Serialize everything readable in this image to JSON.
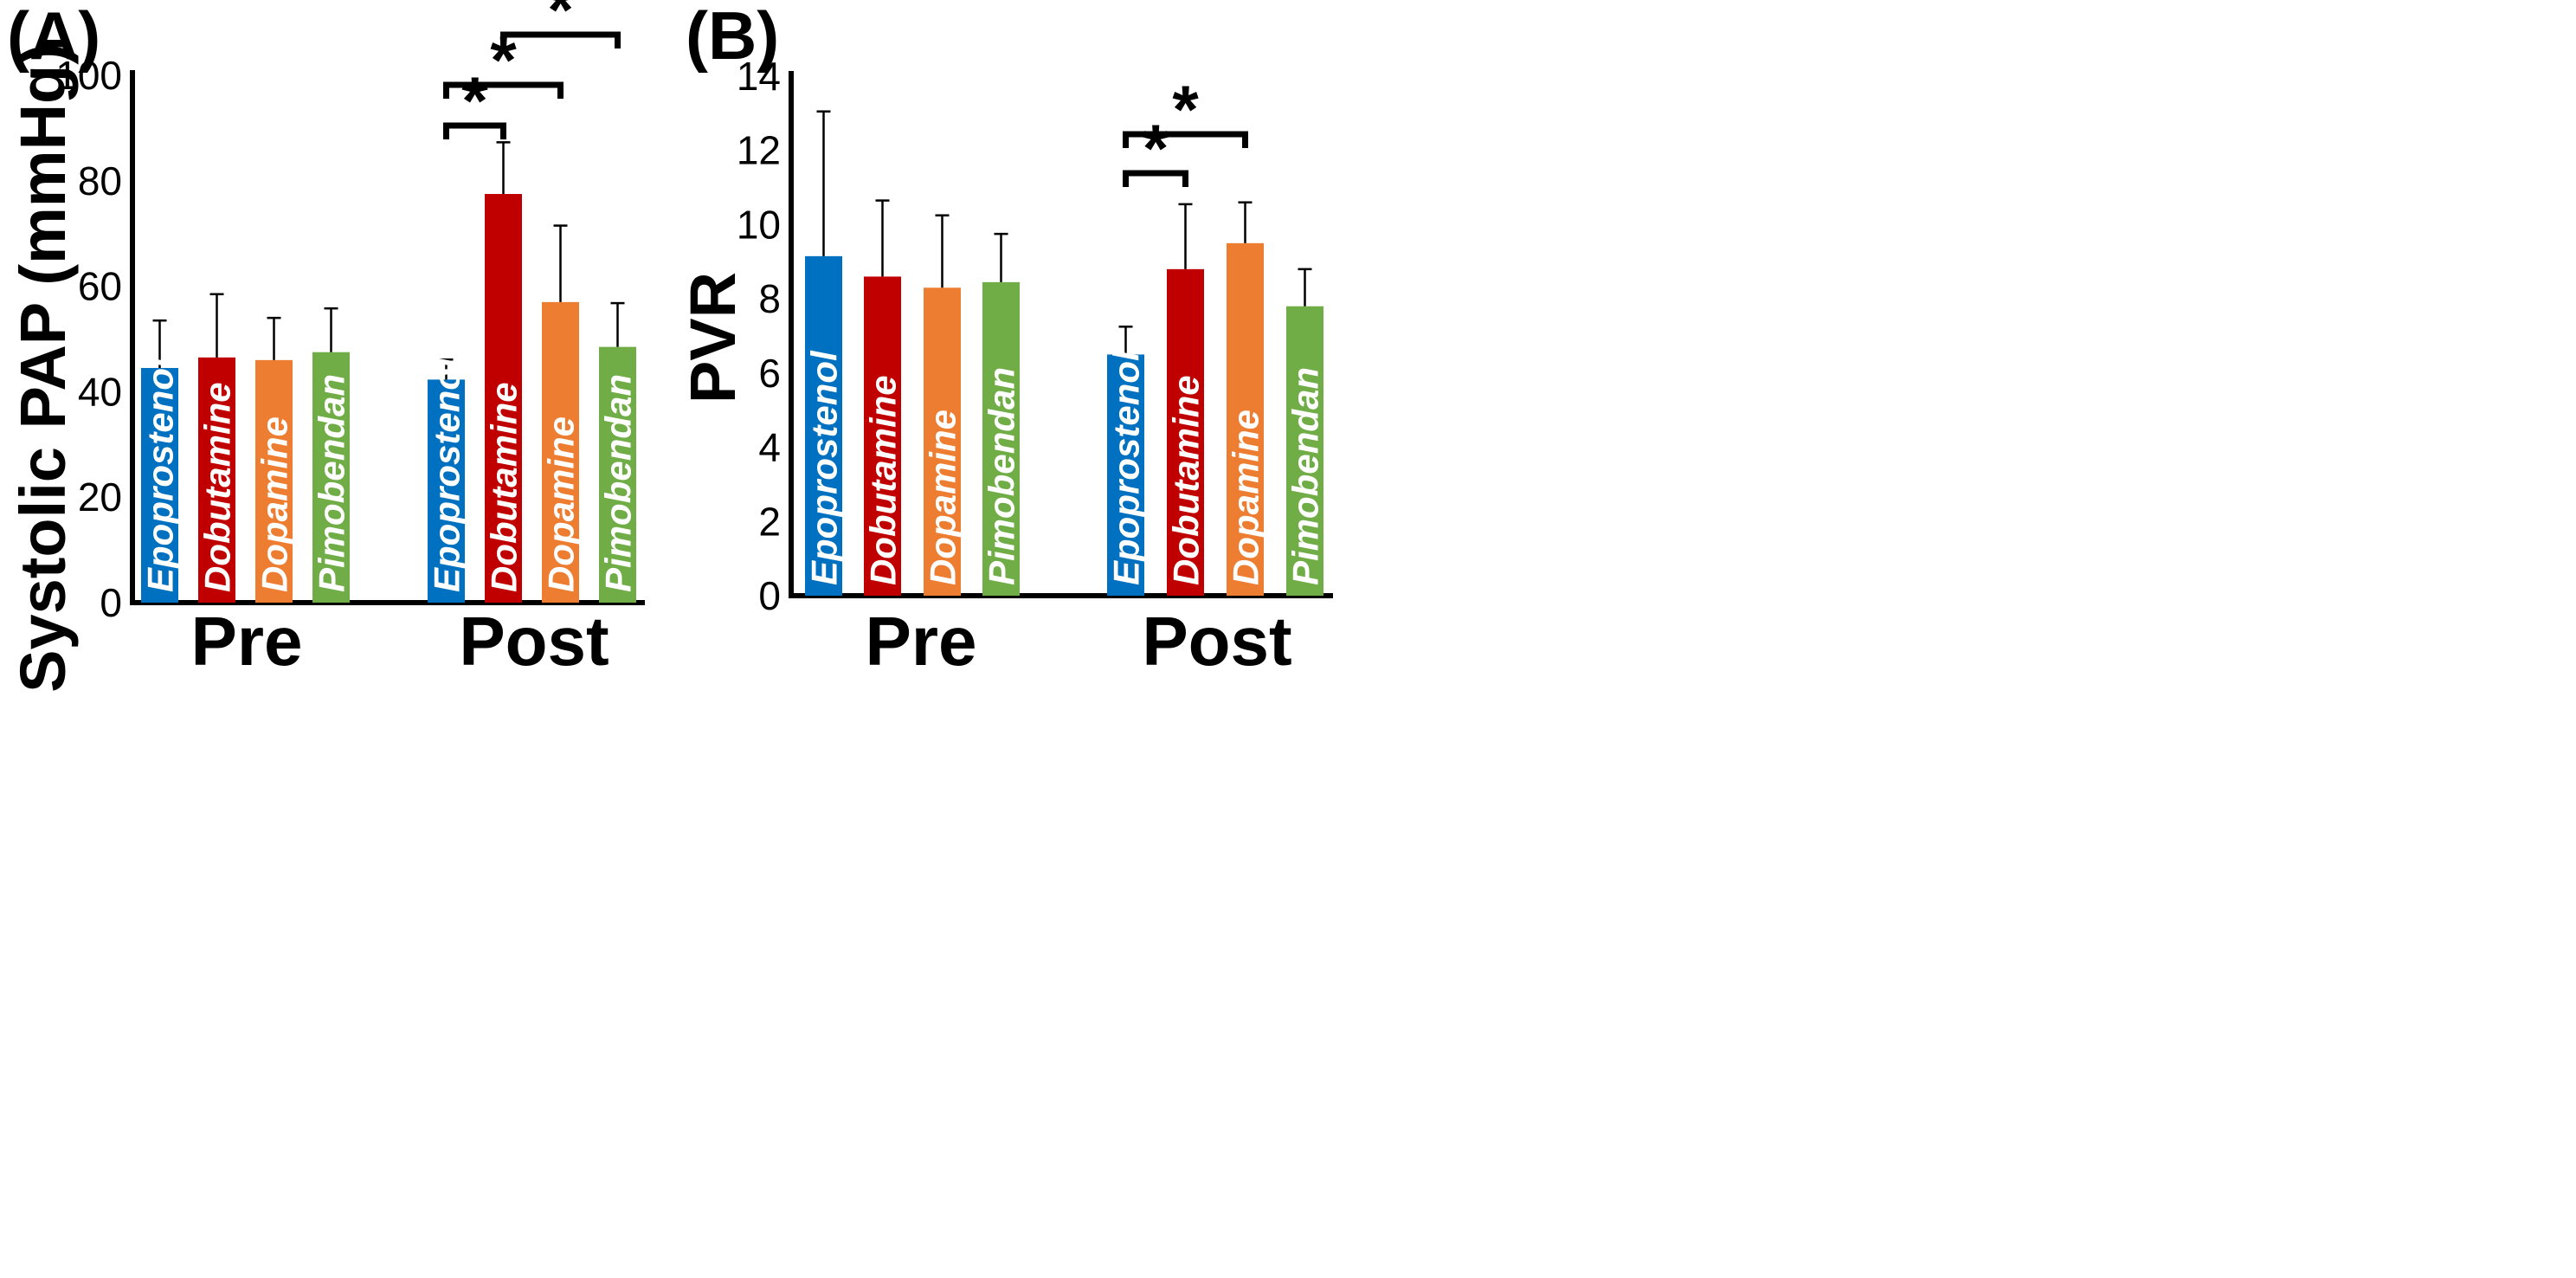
{
  "chart_data": [
    {
      "type": "bar",
      "panel_label": "(A)",
      "ylabel": "Systolic PAP (mmHg)",
      "xlabel": "",
      "ylim": [
        0,
        100
      ],
      "yticks": [
        0,
        20,
        40,
        60,
        80,
        100
      ],
      "groups": [
        "Pre",
        "Post"
      ],
      "categories": [
        "Epoprostenol",
        "Dobutamine",
        "Dopamine",
        "Pimobendan"
      ],
      "colors": [
        "#0070c0",
        "#c00000",
        "#ed7d31",
        "#70ad47"
      ],
      "series": [
        {
          "group": "Pre",
          "values": [
            44.5,
            46.5,
            46,
            47.5
          ],
          "errors": [
            9,
            12,
            8,
            8.3
          ]
        },
        {
          "group": "Post",
          "values": [
            42.3,
            77.5,
            57,
            48.5
          ],
          "errors": [
            3.8,
            9.8,
            14.5,
            8.3
          ]
        }
      ],
      "significance": [
        {
          "group": "Post",
          "from": "Epoprostenol",
          "to": "Dobutamine",
          "label": "*"
        },
        {
          "group": "Post",
          "from": "Epoprostenol",
          "to": "Dopamine",
          "label": "*"
        },
        {
          "group": "Post",
          "from": "Dobutamine",
          "to": "Pimobendan",
          "label": "*"
        }
      ],
      "grid": false,
      "legend": "none"
    },
    {
      "type": "bar",
      "panel_label": "(B)",
      "ylabel": "PVR",
      "xlabel": "",
      "ylim": [
        0,
        14
      ],
      "yticks": [
        0,
        2,
        4,
        6,
        8,
        10,
        12,
        14
      ],
      "groups": [
        "Pre",
        "Post"
      ],
      "categories": [
        "Epoprostenol",
        "Dobutamine",
        "Dopamine",
        "Pimobendan"
      ],
      "colors": [
        "#0070c0",
        "#c00000",
        "#ed7d31",
        "#70ad47"
      ],
      "series": [
        {
          "group": "Pre",
          "values": [
            9.15,
            8.6,
            8.3,
            8.45
          ],
          "errors": [
            3.9,
            2.05,
            1.95,
            1.3
          ]
        },
        {
          "group": "Post",
          "values": [
            6.5,
            8.8,
            9.5,
            7.8
          ],
          "errors": [
            0.75,
            1.75,
            1.1,
            1.0
          ]
        }
      ],
      "significance": [
        {
          "group": "Post",
          "from": "Epoprostenol",
          "to": "Dobutamine",
          "label": "*"
        },
        {
          "group": "Post",
          "from": "Epoprostenol",
          "to": "Dopamine",
          "label": "*"
        }
      ],
      "grid": false,
      "legend": "none"
    }
  ]
}
